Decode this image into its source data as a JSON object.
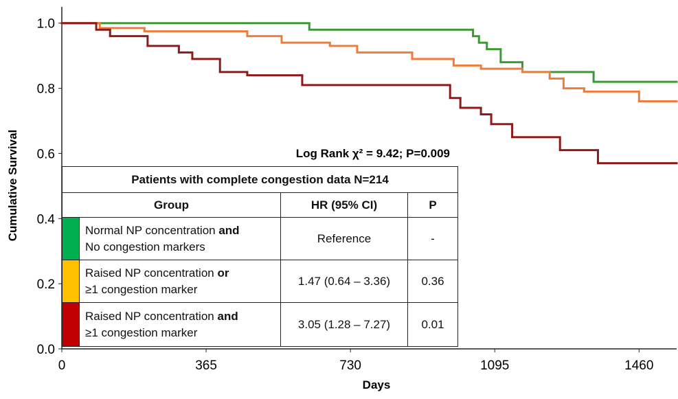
{
  "chart_data": {
    "type": "step",
    "x_label": "Days",
    "y_label": "Cumulative Survival",
    "annotation": "Log Rank χ² = 9.42; P=0.009",
    "xlim": [
      0,
      1555
    ],
    "ylim": [
      0,
      1.05
    ],
    "xticks": [
      0,
      365,
      730,
      1095,
      1460
    ],
    "yticks": [
      {
        "value": 0,
        "label": "0.0"
      },
      0.2,
      0.4,
      0.6,
      0.8,
      {
        "value": 1,
        "label": "1.0"
      }
    ],
    "series": [
      {
        "color": "#3b9a32",
        "x": [
          0,
          626,
          1040,
          1055,
          1075,
          1110,
          1165,
          1345
        ],
        "values": [
          1.0,
          0.98,
          0.96,
          0.94,
          0.92,
          0.88,
          0.85,
          0.82
        ]
      },
      {
        "color": "#f07c3c",
        "x": [
          0,
          96,
          209,
          469,
          556,
          678,
          747,
          886,
          991,
          1060,
          1165,
          1234,
          1269,
          1321,
          1460
        ],
        "values": [
          1.0,
          0.985,
          0.975,
          0.96,
          0.94,
          0.93,
          0.91,
          0.89,
          0.87,
          0.86,
          0.85,
          0.83,
          0.8,
          0.79,
          0.76
        ]
      },
      {
        "color": "#8e1a1a",
        "x": [
          0,
          87,
          122,
          217,
          296,
          330,
          400,
          469,
          608,
          982,
          1008,
          1060,
          1086,
          1139,
          1260,
          1356
        ],
        "values": [
          1.0,
          0.98,
          0.96,
          0.93,
          0.91,
          0.89,
          0.85,
          0.84,
          0.81,
          0.77,
          0.74,
          0.72,
          0.69,
          0.65,
          0.61,
          0.57
        ]
      }
    ]
  },
  "table": {
    "title": "Patients with complete congestion data N=214",
    "header": [
      "Group",
      "HR (95% CI)",
      "P"
    ],
    "rows": [
      {
        "color": "#00b050",
        "group": [
          "Normal NP concentration",
          "and",
          "No congestion markers"
        ],
        "hr": "Reference",
        "p": "-"
      },
      {
        "color": "#ffc000",
        "group": [
          "Raised NP concentration",
          "or",
          "≥1 congestion marker"
        ],
        "hr": "1.47 (0.64 – 3.36)",
        "p": "0.36"
      },
      {
        "color": "#c00000",
        "group": [
          "Raised NP concentration",
          "and",
          "≥1 congestion marker"
        ],
        "hr": "3.05 (1.28 – 7.27)",
        "p": "0.01"
      }
    ]
  }
}
